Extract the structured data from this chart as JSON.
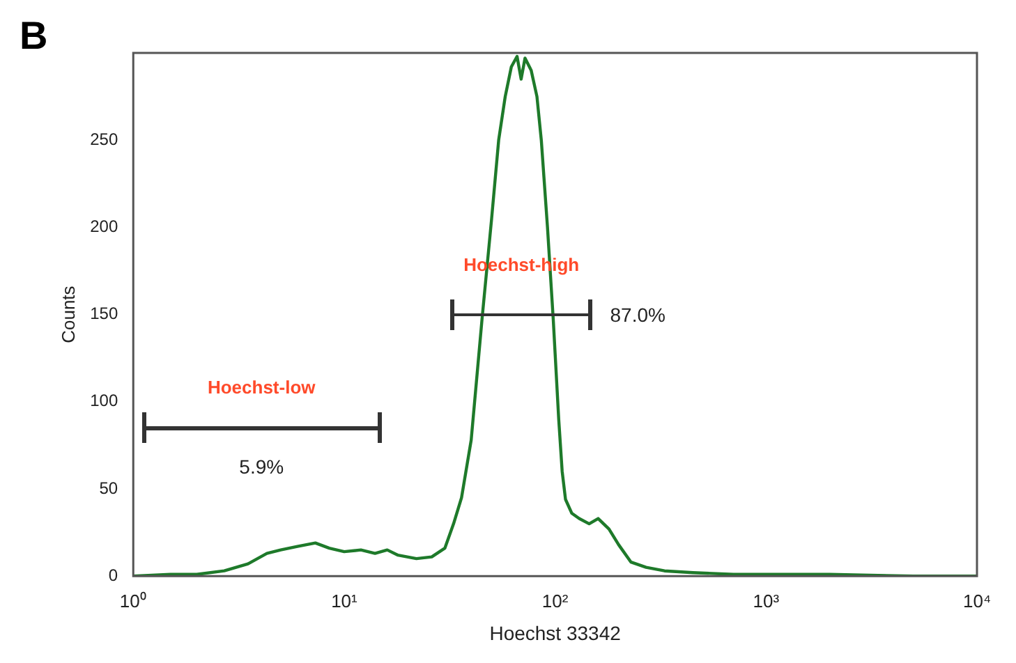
{
  "chart_data": {
    "type": "line",
    "xlabel": "Hoechst 33342",
    "ylabel": "Counts",
    "log": "x",
    "marker": "none",
    "legend": false,
    "grid": false,
    "xlim": [
      1,
      10000
    ],
    "xticks": [
      {
        "value": 1,
        "label": "10⁰"
      },
      {
        "value": 10,
        "label": "10¹"
      },
      {
        "value": 100,
        "label": "10²"
      },
      {
        "value": 1000,
        "label": "10³"
      },
      {
        "value": 10000,
        "label": "10⁴"
      }
    ],
    "ylim": [
      0,
      300
    ],
    "yticks": [
      0,
      50,
      100,
      150,
      200,
      250
    ],
    "x": [
      1,
      1.5,
      2,
      2.7,
      3.5,
      4.3,
      5,
      6,
      7.3,
      8.5,
      10,
      12,
      14,
      16,
      18,
      22,
      26,
      30,
      33,
      36,
      40,
      45,
      50,
      54,
      58,
      62,
      66,
      69,
      72,
      77,
      82,
      86,
      92,
      98,
      104,
      108,
      112,
      120,
      130,
      145,
      160,
      180,
      200,
      229,
      270,
      330,
      450,
      700,
      1000,
      2000,
      5000,
      10000
    ],
    "series": [
      {
        "color": "#1e7a2a",
        "values": [
          0,
          1,
          1,
          3,
          7,
          13,
          15,
          17,
          19,
          16,
          14,
          15,
          13,
          15,
          12,
          10,
          11,
          16,
          30,
          45,
          78,
          147,
          205,
          250,
          275,
          292,
          298,
          285,
          297,
          290,
          275,
          250,
          200,
          147,
          90,
          60,
          44,
          36,
          33,
          30,
          33,
          27,
          18,
          8,
          5,
          3,
          2,
          1,
          1,
          1,
          0,
          0
        ]
      }
    ],
    "annotations": [
      "B",
      "Hoechst-low",
      "5.9%",
      "Hoechst-high",
      "87.0%"
    ]
  }
}
